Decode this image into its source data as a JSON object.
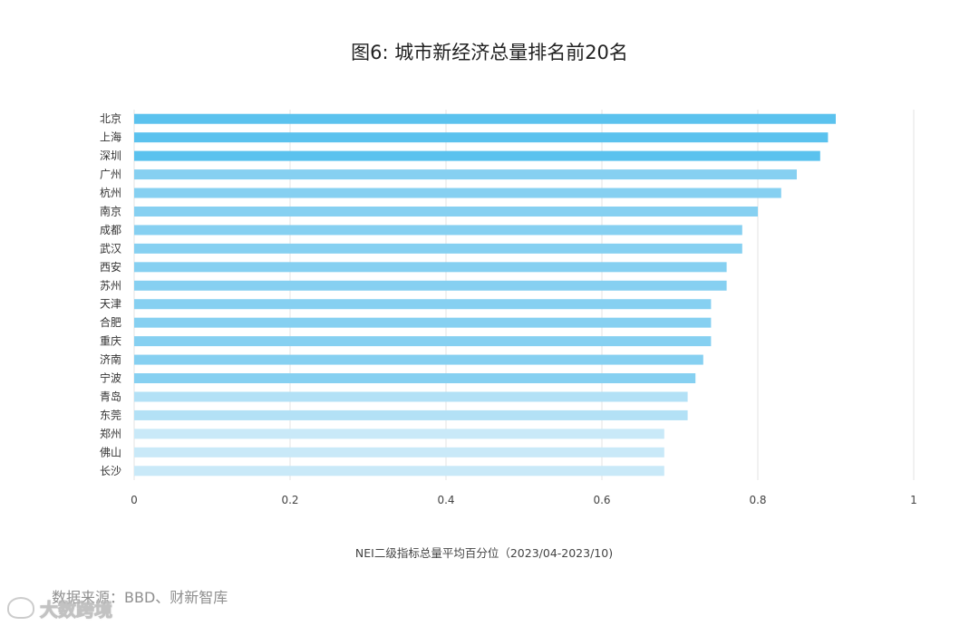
{
  "chart_data": {
    "type": "bar",
    "orientation": "horizontal",
    "title": "图6: 城市新经济总量排名前20名",
    "categories": [
      "北京",
      "上海",
      "深圳",
      "广州",
      "杭州",
      "南京",
      "成都",
      "武汉",
      "西安",
      "苏州",
      "天津",
      "合肥",
      "重庆",
      "济南",
      "宁波",
      "青岛",
      "东莞",
      "郑州",
      "佛山",
      "长沙"
    ],
    "values": [
      0.9,
      0.89,
      0.88,
      0.85,
      0.83,
      0.8,
      0.78,
      0.78,
      0.76,
      0.76,
      0.74,
      0.74,
      0.74,
      0.73,
      0.72,
      0.71,
      0.71,
      0.68,
      0.68,
      0.68
    ],
    "xlabel": "NEI二级指标总量平均百分位（2023/04-2023/10)",
    "ylabel": "",
    "xlim": [
      0,
      1
    ],
    "xticks": [
      "0",
      "0.2",
      "0.4",
      "0.6",
      "0.8",
      "1"
    ],
    "grid": true,
    "colors": [
      "#5bc2ee",
      "#5bc2ee",
      "#5bc2ee",
      "#86d0f1",
      "#86d0f1",
      "#86d0f1",
      "#86d0f1",
      "#86d0f1",
      "#86d0f1",
      "#86d0f1",
      "#86d0f1",
      "#86d0f1",
      "#86d0f1",
      "#86d0f1",
      "#86d0f1",
      "#b3e1f6",
      "#b3e1f6",
      "#c9e9f8",
      "#c9e9f8",
      "#c9e9f8"
    ]
  },
  "source": "数据来源：BBD、财新智库",
  "watermark": "大数跨境",
  "watermark_icon": "logo-icon"
}
